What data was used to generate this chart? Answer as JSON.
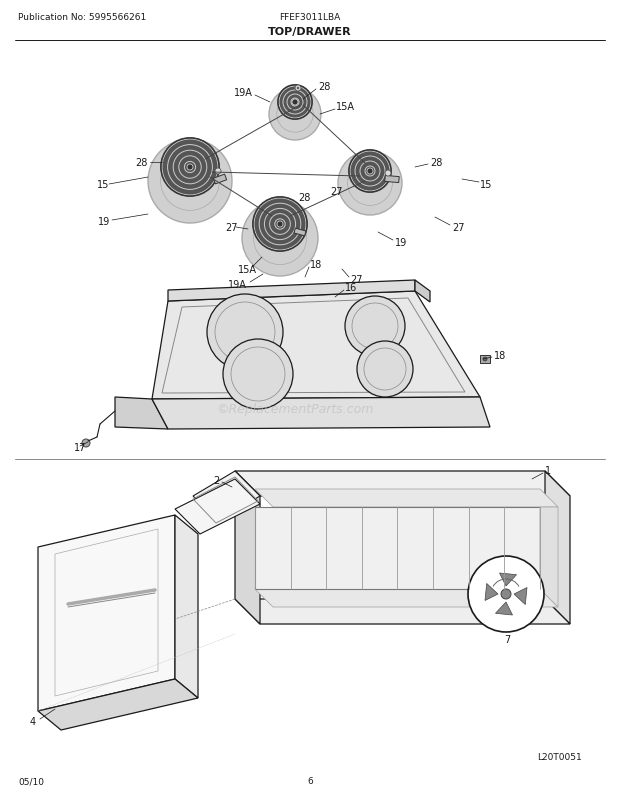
{
  "pub_no": "Publication No: 5995566261",
  "model": "FFEF3011LBA",
  "title": "TOP/DRAWER",
  "date": "05/10",
  "page": "6",
  "diagram_id": "L20T0051",
  "watermark": "©ReplacementParts.com",
  "bg_color": "#ffffff",
  "line_color": "#1a1a1a",
  "gray_light": "#e8e8e8",
  "gray_mid": "#c0c0c0",
  "gray_burner": "#888888",
  "gray_drip": "#d0d0d0"
}
